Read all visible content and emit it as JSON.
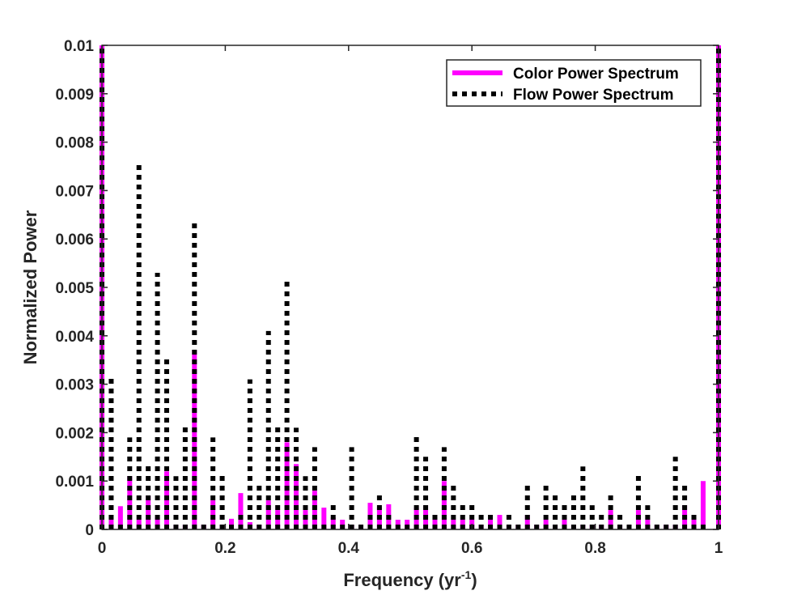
{
  "chart_data": {
    "type": "bar",
    "xlabel": "Frequency (yr",
    "xlabel_sup": "-1",
    "xlabel_tail": ")",
    "ylabel": "Normalized Power",
    "xlim": [
      0,
      1
    ],
    "ylim": [
      0,
      0.01
    ],
    "grid": false,
    "legend_position": "top-right",
    "x_ticks": [
      "0",
      "0.2",
      "0.4",
      "0.6",
      "0.8",
      "1"
    ],
    "y_ticks": [
      "0",
      "0.001",
      "0.002",
      "0.003",
      "0.004",
      "0.005",
      "0.006",
      "0.007",
      "0.008",
      "0.009",
      "0.01"
    ],
    "x": [
      0,
      0.015,
      0.03,
      0.045,
      0.06,
      0.075,
      0.09,
      0.105,
      0.12,
      0.135,
      0.15,
      0.165,
      0.18,
      0.195,
      0.21,
      0.225,
      0.24,
      0.255,
      0.27,
      0.285,
      0.3,
      0.315,
      0.33,
      0.345,
      0.36,
      0.375,
      0.39,
      0.405,
      0.42,
      0.435,
      0.45,
      0.465,
      0.48,
      0.495,
      0.51,
      0.525,
      0.54,
      0.555,
      0.57,
      0.585,
      0.6,
      0.615,
      0.63,
      0.645,
      0.66,
      0.675,
      0.69,
      0.705,
      0.72,
      0.735,
      0.75,
      0.765,
      0.78,
      0.795,
      0.81,
      0.825,
      0.84,
      0.855,
      0.87,
      0.885,
      0.9,
      0.915,
      0.93,
      0.945,
      0.96,
      0.975,
      1.0
    ],
    "series": [
      {
        "name": "Color Power Spectrum",
        "color": "#ff00ff",
        "style": "solid",
        "values": [
          0.01,
          0.0002,
          0.00048,
          0.0011,
          0.0002,
          0.0007,
          0.00025,
          0.0012,
          0.0001,
          0.0001,
          0.0037,
          0.0001,
          0.0006,
          0.0001,
          0.00022,
          0.00075,
          0.00015,
          0.0001,
          0.0006,
          0.0004,
          0.0018,
          0.00135,
          0.0004,
          0.0008,
          0.00045,
          0.00025,
          0.0002,
          0.0001,
          0.0001,
          0.00055,
          0.00045,
          0.00052,
          0.0002,
          0.0002,
          0.00045,
          0.0005,
          0.0002,
          0.001,
          0.0002,
          0.0002,
          0.0002,
          0.0001,
          0.0002,
          0.0003,
          0.0001,
          0.0001,
          0.0003,
          0.0001,
          0.0002,
          0.0001,
          0.0002,
          0.0001,
          0.0001,
          0.0001,
          0.0001,
          0.0004,
          0.0001,
          0.0001,
          0.0004,
          0.0002,
          0.0001,
          0.0001,
          0.0001,
          0.0005,
          0.0002,
          0.001,
          0.01
        ]
      },
      {
        "name": "Flow Power Spectrum",
        "color": "#000000",
        "style": "dotted",
        "values": [
          0.01,
          0.0032,
          0.0001,
          0.0019,
          0.0076,
          0.0014,
          0.0053,
          0.0036,
          0.0011,
          0.0022,
          0.0064,
          0.0001,
          0.0019,
          0.00115,
          0.0001,
          0.0003,
          0.0031,
          0.001,
          0.0041,
          0.0022,
          0.0052,
          0.0021,
          0.0011,
          0.0017,
          0.0002,
          0.00055,
          0.0001,
          0.0017,
          0.0001,
          0.0003,
          0.0008,
          0.0004,
          0.0001,
          0.0001,
          0.002,
          0.0015,
          0.0003,
          0.0017,
          0.001,
          0.0006,
          0.00055,
          0.0004,
          0.0004,
          0.0001,
          0.0003,
          0.0001,
          0.00095,
          0.0001,
          0.001,
          0.0008,
          0.0006,
          0.00075,
          0.0013,
          0.0005,
          0.0004,
          0.0008,
          0.0003,
          0.0001,
          0.0012,
          0.0005,
          0.0001,
          0.0001,
          0.0015,
          0.001,
          0.0004,
          0.0001,
          0.01
        ]
      }
    ]
  }
}
